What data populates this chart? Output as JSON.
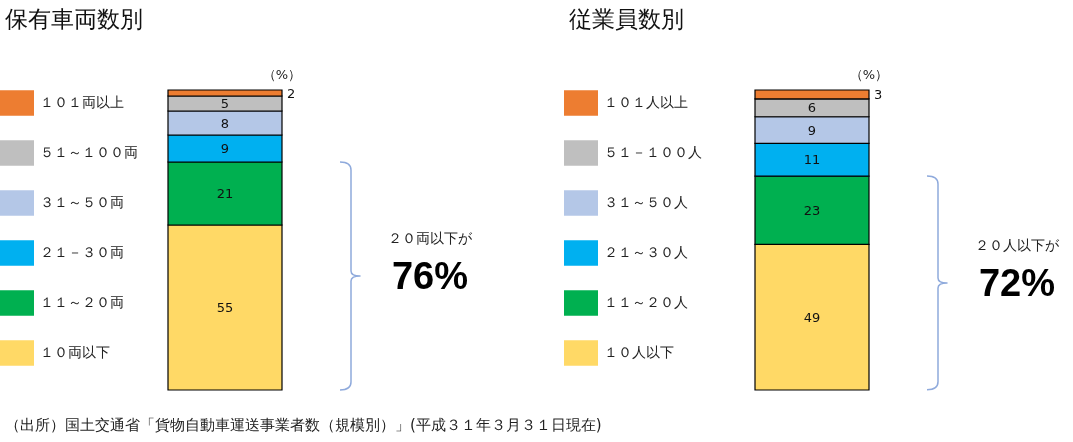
{
  "chart_data": [
    {
      "type": "bar",
      "title": "保有車両数別",
      "ylabel": "（%）",
      "categories": [
        null
      ],
      "stacked": true,
      "data_labels": true,
      "legend": "left",
      "series": [
        {
          "name": "１０両以下",
          "color": "#ffd966",
          "values": [
            55
          ]
        },
        {
          "name": "１１～２０両",
          "color": "#00b050",
          "values": [
            21
          ]
        },
        {
          "name": "２１－３０両",
          "color": "#00b0f0",
          "values": [
            9
          ]
        },
        {
          "name": "３１～５０両",
          "color": "#b4c7e7",
          "values": [
            8
          ]
        },
        {
          "name": "５１～１００両",
          "color": "#bfbfbf",
          "values": [
            5
          ]
        },
        {
          "name": "１０１両以上",
          "color": "#ed7d31",
          "values": [
            2
          ]
        }
      ],
      "annotations": [
        "２０両以下が",
        "76%",
        "（出所）国土交通省「貨物自動車運送事業者数（規模別）」(平成３１年３月３１日現在)"
      ]
    },
    {
      "type": "bar",
      "title": "従業員数別",
      "ylabel": "（%）",
      "categories": [
        null
      ],
      "stacked": true,
      "data_labels": true,
      "legend": "left",
      "series": [
        {
          "name": "１０人以下",
          "color": "#ffd966",
          "values": [
            49
          ]
        },
        {
          "name": "１１～２０人",
          "color": "#00b050",
          "values": [
            23
          ]
        },
        {
          "name": "２１～３０人",
          "color": "#00b0f0",
          "values": [
            11
          ]
        },
        {
          "name": "３１～５０人",
          "color": "#b4c7e7",
          "values": [
            9
          ]
        },
        {
          "name": "５１－１００人",
          "color": "#bfbfbf",
          "values": [
            6
          ]
        },
        {
          "name": "１０１人以上",
          "color": "#ed7d31",
          "values": [
            3
          ]
        }
      ],
      "annotations": [
        "２０人以下が",
        "72%"
      ]
    }
  ]
}
